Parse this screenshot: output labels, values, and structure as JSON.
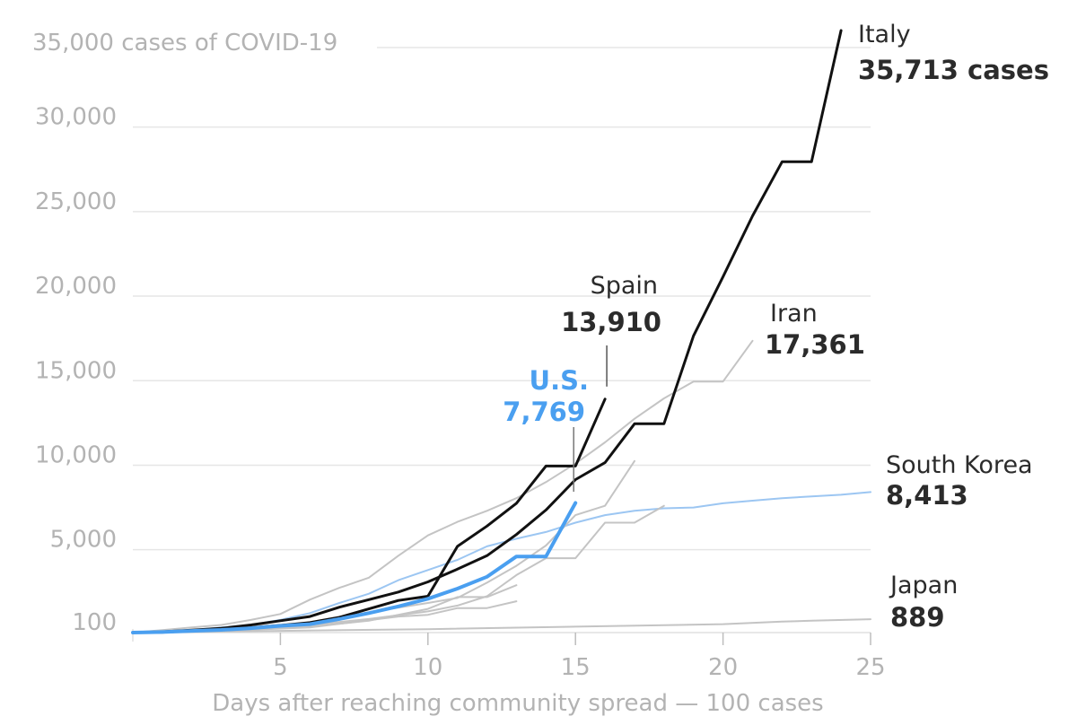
{
  "chart_data": {
    "type": "line",
    "title": "35,000 cases of COVID-19",
    "xlabel": "Days after reaching community spread — 100 cases",
    "ylabel": "",
    "xlim": [
      0,
      25
    ],
    "ylim": [
      100,
      35713
    ],
    "grid": true,
    "x_ticks": [
      5,
      10,
      15,
      20,
      25
    ],
    "y_ticks": [
      {
        "value": 100,
        "label": "100"
      },
      {
        "value": 5000,
        "label": "5,000"
      },
      {
        "value": 10000,
        "label": "10,000"
      },
      {
        "value": 15000,
        "label": "15,000"
      },
      {
        "value": 20000,
        "label": "20,000"
      },
      {
        "value": 25000,
        "label": "25,000"
      },
      {
        "value": 30000,
        "label": "30,000"
      }
    ],
    "series": [
      {
        "name": "Italy",
        "label_value": "35,713 cases",
        "color": "#111111",
        "width": 3,
        "highlight": true,
        "x": [
          0,
          1,
          2,
          3,
          4,
          5,
          6,
          7,
          8,
          9,
          10,
          11,
          12,
          13,
          14,
          15,
          16,
          17,
          18,
          19,
          20,
          21,
          22,
          23,
          24
        ],
        "y": [
          100,
          150,
          250,
          350,
          550,
          800,
          1050,
          1600,
          2050,
          2500,
          3100,
          3850,
          4650,
          5900,
          7350,
          9150,
          10150,
          12450,
          12450,
          17650,
          21150,
          24750,
          27950,
          27950,
          35713
        ]
      },
      {
        "name": "Spain",
        "label_value": "13,910",
        "color": "#111111",
        "width": 3,
        "highlight": true,
        "x": [
          0,
          1,
          2,
          3,
          4,
          5,
          6,
          7,
          8,
          9,
          10,
          11,
          12,
          13,
          14,
          15,
          16
        ],
        "y": [
          100,
          120,
          200,
          280,
          380,
          520,
          690,
          1000,
          1500,
          2000,
          2250,
          5200,
          6400,
          7750,
          9950,
          9950,
          13910
        ]
      },
      {
        "name": "Iran",
        "label_value": "17,361",
        "color": "#c4c4c4",
        "width": 2,
        "highlight": false,
        "x": [
          0,
          1,
          2,
          3,
          4,
          5,
          6,
          7,
          8,
          9,
          10,
          11,
          12,
          13,
          14,
          15,
          16,
          17,
          18,
          19,
          20,
          21
        ],
        "y": [
          100,
          250,
          400,
          550,
          850,
          1200,
          2050,
          2750,
          3350,
          4650,
          5850,
          6650,
          7300,
          8050,
          9000,
          10100,
          11350,
          12750,
          13950,
          14950,
          14950,
          17361
        ]
      },
      {
        "name": "South Korea",
        "label_value": "8,413",
        "color": "#9cc6f2",
        "width": 2,
        "highlight": false,
        "x": [
          0,
          1,
          2,
          3,
          4,
          5,
          6,
          7,
          8,
          9,
          10,
          11,
          12,
          13,
          14,
          15,
          16,
          17,
          18,
          19,
          20,
          21,
          22,
          23,
          24,
          25
        ],
        "y": [
          100,
          150,
          250,
          400,
          550,
          850,
          1250,
          1850,
          2400,
          3200,
          3800,
          4400,
          5200,
          5650,
          6050,
          6600,
          7050,
          7300,
          7450,
          7500,
          7750,
          7900,
          8050,
          8150,
          8250,
          8413
        ]
      },
      {
        "name": "Japan",
        "label_value": "889",
        "color": "#c4c4c4",
        "width": 2,
        "highlight": false,
        "x": [
          0,
          5,
          10,
          15,
          20,
          22,
          23,
          25
        ],
        "y": [
          100,
          200,
          300,
          450,
          600,
          750,
          800,
          889
        ]
      },
      {
        "name": "U.S.",
        "label_value": "7,769",
        "color": "#4a9ff0",
        "width": 4,
        "highlight": true,
        "x": [
          0,
          1,
          2,
          3,
          4,
          5,
          6,
          7,
          8,
          9,
          10,
          11,
          12,
          13,
          14,
          15
        ],
        "y": [
          100,
          130,
          200,
          260,
          360,
          500,
          600,
          900,
          1250,
          1650,
          2100,
          2700,
          3400,
          4600,
          4600,
          7769
        ]
      },
      {
        "name": "",
        "color": "#c4c4c4",
        "width": 2,
        "highlight": false,
        "x": [
          0,
          2,
          4,
          6,
          8,
          10,
          11,
          12,
          13,
          14,
          15,
          16,
          17
        ],
        "y": [
          100,
          250,
          450,
          700,
          1300,
          1850,
          2150,
          3050,
          4050,
          5250,
          7050,
          7600,
          10250
        ]
      },
      {
        "name": "",
        "color": "#c4c4c4",
        "width": 2,
        "highlight": false,
        "x": [
          0,
          2,
          4,
          6,
          8,
          10,
          11,
          12,
          13,
          14,
          15,
          16,
          17,
          18
        ],
        "y": [
          100,
          200,
          350,
          550,
          900,
          1350,
          1700,
          2250,
          3500,
          4500,
          4500,
          6600,
          6600,
          7600
        ]
      },
      {
        "name": "",
        "color": "#c4c4c4",
        "width": 2,
        "highlight": false,
        "x": [
          0,
          2,
          4,
          6,
          8,
          10,
          11,
          12,
          13
        ],
        "y": [
          100,
          200,
          300,
          450,
          800,
          1500,
          2200,
          2200,
          2900
        ]
      },
      {
        "name": "",
        "color": "#c4c4c4",
        "width": 2,
        "highlight": false,
        "x": [
          0,
          3,
          6,
          9,
          10,
          11,
          12,
          13
        ],
        "y": [
          100,
          200,
          400,
          1050,
          1150,
          1550,
          1550,
          1950
        ]
      }
    ]
  }
}
